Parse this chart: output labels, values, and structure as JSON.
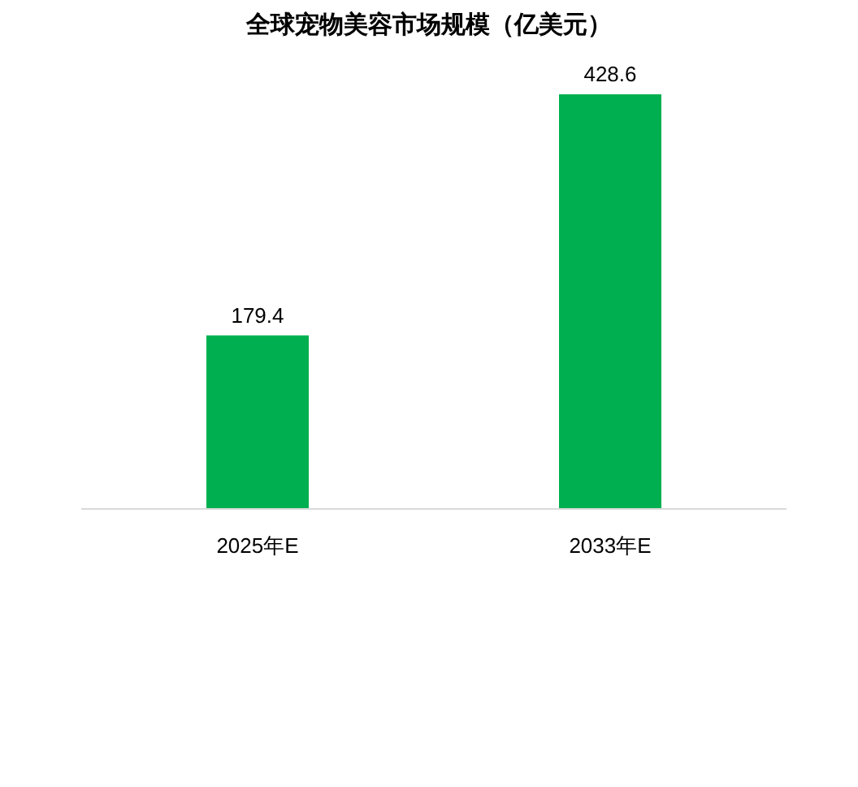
{
  "chart_data": {
    "type": "bar",
    "title": "全球宠物美容市场规模（亿美元）",
    "categories": [
      "2025年E",
      "2033年E"
    ],
    "values": [
      179.4,
      428.6
    ],
    "color": "#00b050",
    "data_labels": true
  }
}
